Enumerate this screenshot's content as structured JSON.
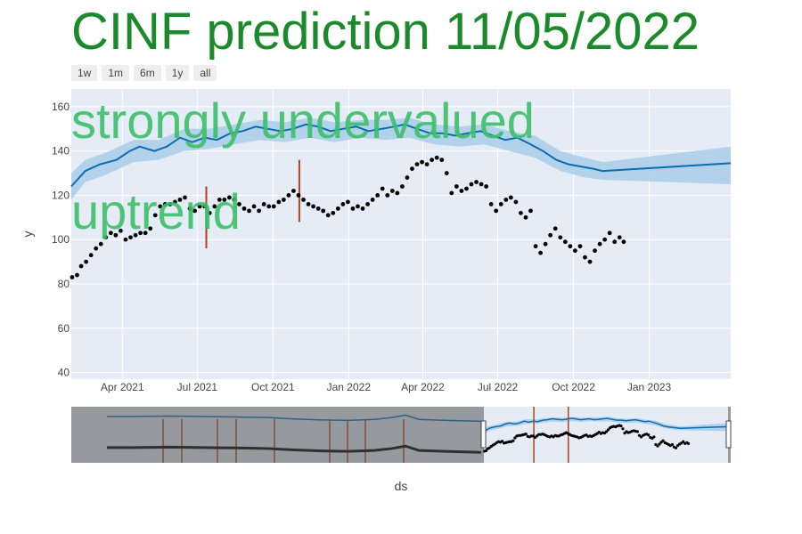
{
  "title": "CINF prediction 11/05/2022",
  "range_buttons": [
    "1w",
    "1m",
    "6m",
    "1y",
    "all"
  ],
  "colors": {
    "title": "#1a8a2a",
    "annotation": "#3cbf6a",
    "forecast_line": "#0b6db0",
    "band": "#a9cde9",
    "changepoint": "#b8401a",
    "plot_bg": "#e5ecf6",
    "actual": "#000000"
  },
  "chart_data": {
    "type": "line",
    "xlabel": "ds",
    "ylabel": "y",
    "xlim": [
      "2021-01-29",
      "2023-04-10"
    ],
    "ylim": [
      37,
      168
    ],
    "x_ticks": [
      "Apr 2021",
      "Jul 2021",
      "Oct 2021",
      "Jan 2022",
      "Apr 2022",
      "Jul 2022",
      "Oct 2022",
      "Jan 2023"
    ],
    "x_tick_dates": [
      "2021-04-01",
      "2021-07-01",
      "2021-10-01",
      "2022-01-01",
      "2022-04-01",
      "2022-07-01",
      "2022-10-01",
      "2023-01-01"
    ],
    "y_ticks": [
      40,
      60,
      80,
      100,
      120,
      140,
      160
    ],
    "annotations": [
      "strongly undervalued",
      "uptrend"
    ],
    "series": [
      {
        "type": "line",
        "points": [
          [
            "2021-01-29",
            124
          ],
          [
            "2021-02-15",
            131
          ],
          [
            "2021-03-05",
            134
          ],
          [
            "2021-03-25",
            136
          ],
          [
            "2021-04-10",
            140
          ],
          [
            "2021-04-22",
            142
          ],
          [
            "2021-05-10",
            140
          ],
          [
            "2021-05-25",
            142
          ],
          [
            "2021-06-10",
            146
          ],
          [
            "2021-06-25",
            144
          ],
          [
            "2021-07-10",
            146
          ],
          [
            "2021-07-25",
            145
          ],
          [
            "2021-08-10",
            148
          ],
          [
            "2021-08-25",
            149
          ],
          [
            "2021-09-10",
            151
          ],
          [
            "2021-09-25",
            150
          ],
          [
            "2021-10-10",
            149
          ],
          [
            "2021-10-25",
            150
          ],
          [
            "2021-11-10",
            152
          ],
          [
            "2021-11-25",
            151
          ],
          [
            "2021-12-10",
            149
          ],
          [
            "2021-12-25",
            150
          ],
          [
            "2022-01-10",
            151
          ],
          [
            "2022-01-25",
            149
          ],
          [
            "2022-02-10",
            150
          ],
          [
            "2022-02-25",
            151
          ],
          [
            "2022-03-10",
            152
          ],
          [
            "2022-03-25",
            150
          ],
          [
            "2022-04-10",
            148
          ],
          [
            "2022-04-25",
            148
          ],
          [
            "2022-05-10",
            147
          ],
          [
            "2022-05-25",
            148
          ],
          [
            "2022-06-10",
            149
          ],
          [
            "2022-06-25",
            147
          ],
          [
            "2022-07-10",
            145
          ],
          [
            "2022-07-25",
            146
          ],
          [
            "2022-08-10",
            143
          ],
          [
            "2022-08-25",
            140
          ],
          [
            "2022-09-10",
            136
          ],
          [
            "2022-09-25",
            134
          ],
          [
            "2022-10-10",
            133
          ],
          [
            "2022-10-25",
            132
          ],
          [
            "2022-11-05",
            131
          ],
          [
            "2022-11-06",
            131
          ],
          [
            "2023-04-10",
            134.5
          ]
        ]
      },
      {
        "type": "band",
        "upper": [
          [
            "2021-01-29",
            130
          ],
          [
            "2021-02-15",
            136
          ],
          [
            "2021-03-10",
            139
          ],
          [
            "2021-04-15",
            145
          ],
          [
            "2021-05-15",
            145
          ],
          [
            "2021-06-15",
            150
          ],
          [
            "2021-07-15",
            150
          ],
          [
            "2021-08-15",
            152
          ],
          [
            "2021-09-15",
            154
          ],
          [
            "2021-10-15",
            153
          ],
          [
            "2021-11-15",
            155
          ],
          [
            "2021-12-15",
            153
          ],
          [
            "2022-01-15",
            154
          ],
          [
            "2022-02-15",
            154
          ],
          [
            "2022-03-15",
            155
          ],
          [
            "2022-04-15",
            152
          ],
          [
            "2022-05-15",
            151
          ],
          [
            "2022-06-15",
            152
          ],
          [
            "2022-07-15",
            149
          ],
          [
            "2022-08-15",
            147
          ],
          [
            "2022-09-15",
            140
          ],
          [
            "2022-10-15",
            137
          ],
          [
            "2022-11-06",
            135
          ],
          [
            "2023-04-10",
            142
          ]
        ],
        "lower": [
          [
            "2021-01-29",
            118
          ],
          [
            "2021-02-15",
            126
          ],
          [
            "2021-03-10",
            129
          ],
          [
            "2021-04-15",
            135
          ],
          [
            "2021-05-15",
            136
          ],
          [
            "2021-06-15",
            140
          ],
          [
            "2021-07-15",
            141
          ],
          [
            "2021-08-15",
            143
          ],
          [
            "2021-09-15",
            145
          ],
          [
            "2021-10-15",
            144
          ],
          [
            "2021-11-15",
            146
          ],
          [
            "2021-12-15",
            144
          ],
          [
            "2022-01-15",
            146
          ],
          [
            "2022-02-15",
            145
          ],
          [
            "2022-03-15",
            146
          ],
          [
            "2022-04-15",
            143
          ],
          [
            "2022-05-15",
            142
          ],
          [
            "2022-06-15",
            143
          ],
          [
            "2022-07-15",
            140
          ],
          [
            "2022-08-15",
            137
          ],
          [
            "2022-09-15",
            131
          ],
          [
            "2022-10-15",
            128
          ],
          [
            "2022-11-06",
            127
          ],
          [
            "2023-04-10",
            125
          ]
        ]
      },
      {
        "type": "scatter",
        "points": [
          [
            "2021-01-30",
            83
          ],
          [
            "2021-02-05",
            84
          ],
          [
            "2021-02-10",
            88
          ],
          [
            "2021-02-16",
            90
          ],
          [
            "2021-02-22",
            93
          ],
          [
            "2021-02-28",
            96
          ],
          [
            "2021-03-06",
            98
          ],
          [
            "2021-03-12",
            101
          ],
          [
            "2021-03-18",
            103
          ],
          [
            "2021-03-24",
            102
          ],
          [
            "2021-03-30",
            104
          ],
          [
            "2021-04-05",
            100
          ],
          [
            "2021-04-11",
            101
          ],
          [
            "2021-04-17",
            102
          ],
          [
            "2021-04-23",
            103
          ],
          [
            "2021-04-29",
            103
          ],
          [
            "2021-05-05",
            105
          ],
          [
            "2021-05-11",
            111
          ],
          [
            "2021-05-17",
            115
          ],
          [
            "2021-05-23",
            116
          ],
          [
            "2021-05-29",
            116
          ],
          [
            "2021-06-04",
            117
          ],
          [
            "2021-06-10",
            118
          ],
          [
            "2021-06-16",
            119
          ],
          [
            "2021-06-22",
            114
          ],
          [
            "2021-06-28",
            113
          ],
          [
            "2021-07-04",
            115
          ],
          [
            "2021-07-10",
            115
          ],
          [
            "2021-07-16",
            112
          ],
          [
            "2021-07-22",
            115
          ],
          [
            "2021-07-28",
            118
          ],
          [
            "2021-08-03",
            118
          ],
          [
            "2021-08-09",
            119
          ],
          [
            "2021-08-15",
            118
          ],
          [
            "2021-08-21",
            116
          ],
          [
            "2021-08-27",
            114
          ],
          [
            "2021-09-02",
            113
          ],
          [
            "2021-09-08",
            115
          ],
          [
            "2021-09-14",
            113
          ],
          [
            "2021-09-20",
            116
          ],
          [
            "2021-09-26",
            115
          ],
          [
            "2021-10-02",
            115
          ],
          [
            "2021-10-08",
            117
          ],
          [
            "2021-10-14",
            118
          ],
          [
            "2021-10-20",
            120
          ],
          [
            "2021-10-26",
            122
          ],
          [
            "2021-11-01",
            120
          ],
          [
            "2021-11-07",
            118
          ],
          [
            "2021-11-13",
            116
          ],
          [
            "2021-11-19",
            115
          ],
          [
            "2021-11-25",
            114
          ],
          [
            "2021-12-01",
            113
          ],
          [
            "2021-12-07",
            111
          ],
          [
            "2021-12-13",
            112
          ],
          [
            "2021-12-19",
            114
          ],
          [
            "2021-12-25",
            116
          ],
          [
            "2021-12-31",
            117
          ],
          [
            "2022-01-06",
            114
          ],
          [
            "2022-01-12",
            115
          ],
          [
            "2022-01-18",
            114
          ],
          [
            "2022-01-24",
            116
          ],
          [
            "2022-01-30",
            118
          ],
          [
            "2022-02-05",
            120
          ],
          [
            "2022-02-11",
            123
          ],
          [
            "2022-02-17",
            120
          ],
          [
            "2022-02-23",
            122
          ],
          [
            "2022-03-01",
            121
          ],
          [
            "2022-03-07",
            124
          ],
          [
            "2022-03-13",
            128
          ],
          [
            "2022-03-19",
            132
          ],
          [
            "2022-03-25",
            134
          ],
          [
            "2022-03-31",
            135
          ],
          [
            "2022-04-06",
            134
          ],
          [
            "2022-04-12",
            136
          ],
          [
            "2022-04-18",
            137
          ],
          [
            "2022-04-24",
            136
          ],
          [
            "2022-04-30",
            130
          ],
          [
            "2022-05-06",
            121
          ],
          [
            "2022-05-12",
            124
          ],
          [
            "2022-05-18",
            122
          ],
          [
            "2022-05-24",
            123
          ],
          [
            "2022-05-30",
            125
          ],
          [
            "2022-06-05",
            126
          ],
          [
            "2022-06-11",
            125
          ],
          [
            "2022-06-17",
            124
          ],
          [
            "2022-06-23",
            116
          ],
          [
            "2022-06-29",
            113
          ],
          [
            "2022-07-05",
            116
          ],
          [
            "2022-07-11",
            118
          ],
          [
            "2022-07-17",
            119
          ],
          [
            "2022-07-23",
            117
          ],
          [
            "2022-07-29",
            112
          ],
          [
            "2022-08-04",
            110
          ],
          [
            "2022-08-10",
            113
          ],
          [
            "2022-08-16",
            97
          ],
          [
            "2022-08-22",
            94
          ],
          [
            "2022-08-28",
            98
          ],
          [
            "2022-09-03",
            102
          ],
          [
            "2022-09-09",
            105
          ],
          [
            "2022-09-15",
            101
          ],
          [
            "2022-09-21",
            99
          ],
          [
            "2022-09-27",
            97
          ],
          [
            "2022-10-03",
            95
          ],
          [
            "2022-10-09",
            97
          ],
          [
            "2022-10-15",
            92
          ],
          [
            "2022-10-21",
            90
          ],
          [
            "2022-10-27",
            95
          ],
          [
            "2022-11-02",
            98
          ],
          [
            "2022-11-08",
            100
          ],
          [
            "2022-11-14",
            103
          ],
          [
            "2022-11-20",
            99
          ],
          [
            "2022-11-26",
            101
          ],
          [
            "2022-12-01",
            99
          ]
        ]
      },
      {
        "type": "changepoints",
        "segments": [
          [
            "2021-07-12",
            96,
            124
          ],
          [
            "2021-11-02",
            108,
            136
          ]
        ]
      }
    ]
  }
}
